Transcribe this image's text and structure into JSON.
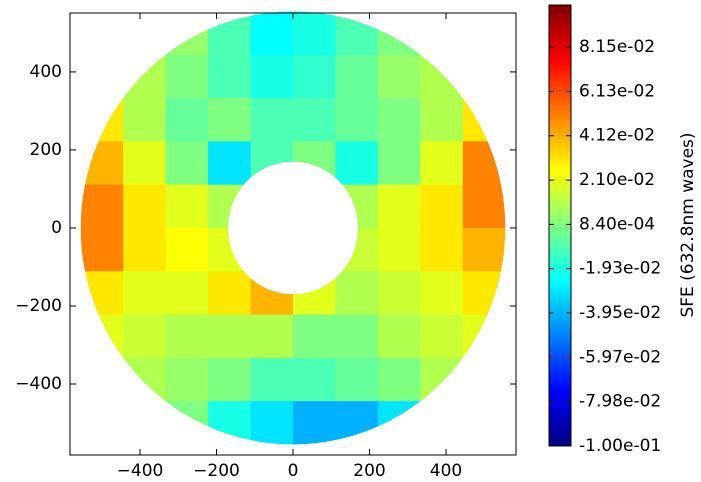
{
  "chart_data": {
    "type": "heatmap",
    "xlim": [
      -583,
      583
    ],
    "ylim": [
      -582,
      551
    ],
    "xticks": [
      {
        "value": -400,
        "label": "−400"
      },
      {
        "value": -200,
        "label": "−200"
      },
      0,
      200,
      400
    ],
    "yticks": [
      {
        "value": -400,
        "label": "−400"
      },
      {
        "value": -200,
        "label": "−200"
      },
      0,
      200,
      400
    ],
    "outer_radius": 555,
    "inner_radius": 170,
    "xbins": [
      -555,
      -444,
      -333,
      -222,
      -111,
      0,
      111,
      222,
      333,
      444,
      555
    ],
    "ybins": [
      555,
      444,
      333,
      222,
      111,
      0,
      -111,
      -222,
      -333,
      -444,
      -555
    ],
    "z": [
      [
        null,
        null,
        0.005,
        -0.01,
        -0.025,
        -0.02,
        -0.01,
        0.0,
        null,
        null
      ],
      [
        null,
        0.01,
        0.0,
        -0.01,
        -0.02,
        -0.015,
        -0.005,
        0.005,
        0.01,
        null
      ],
      [
        0.03,
        0.01,
        -0.005,
        0.0,
        -0.01,
        -0.01,
        -0.005,
        0.0,
        0.01,
        0.03
      ],
      [
        0.04,
        0.02,
        0.0,
        -0.03,
        -0.01,
        0.0,
        -0.02,
        0.0,
        0.02,
        0.05
      ],
      [
        0.05,
        0.03,
        0.02,
        0.01,
        null,
        null,
        0.01,
        0.02,
        0.03,
        0.05
      ],
      [
        0.05,
        0.03,
        0.025,
        0.02,
        null,
        null,
        0.015,
        0.02,
        0.03,
        0.04
      ],
      [
        0.03,
        0.02,
        0.02,
        0.03,
        0.04,
        0.02,
        0.01,
        0.015,
        0.02,
        0.03
      ],
      [
        0.02,
        0.015,
        0.01,
        0.01,
        0.01,
        0.0,
        0.0,
        0.01,
        0.015,
        0.02
      ],
      [
        null,
        0.01,
        0.005,
        0.0,
        -0.01,
        -0.01,
        -0.005,
        0.0,
        0.01,
        null
      ],
      [
        null,
        null,
        0.0,
        -0.02,
        -0.03,
        -0.04,
        -0.04,
        -0.03,
        null,
        null
      ]
    ],
    "colormap": "jet",
    "clim": [
      -0.1,
      0.1007
    ],
    "colorbar_label": "SFE (632.8nm waves)",
    "colorbar_ticks": [
      {
        "value": -0.1,
        "label": "-1.00e-01"
      },
      {
        "value": -0.0798,
        "label": "-7.98e-02"
      },
      {
        "value": -0.0597,
        "label": "-5.97e-02"
      },
      {
        "value": -0.0395,
        "label": "-3.95e-02"
      },
      {
        "value": -0.0193,
        "label": "-1.93e-02"
      },
      {
        "value": 0.00084,
        "label": "8.40e-04"
      },
      {
        "value": 0.021,
        "label": "2.10e-02"
      },
      {
        "value": 0.0412,
        "label": "4.12e-02"
      },
      {
        "value": 0.0613,
        "label": "6.13e-02"
      },
      {
        "value": 0.0815,
        "label": "8.15e-02"
      }
    ]
  }
}
